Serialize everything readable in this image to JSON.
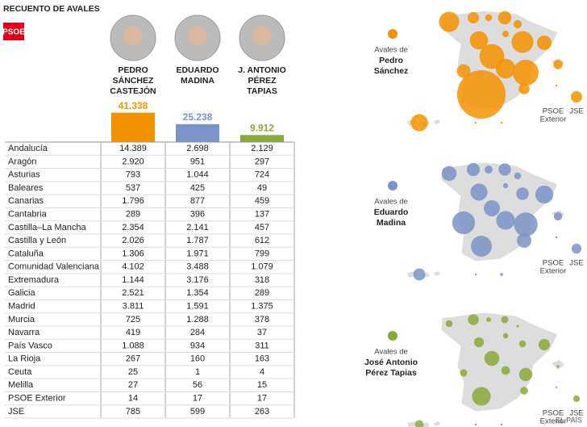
{
  "header": {
    "title": "RECUENTO DE AVALES",
    "logo": "PSOE",
    "source": "EL PAÍS"
  },
  "candidates": [
    {
      "name_lines": [
        "PEDRO",
        "SÁNCHEZ",
        "CASTEJÓN"
      ],
      "total": {
        "value": 41338,
        "label": "41.338"
      },
      "color": "#f39200"
    },
    {
      "name_lines": [
        "EDUARDO",
        "MADINA"
      ],
      "total": {
        "value": 25238,
        "label": "25.238"
      },
      "color": "#7b93c6"
    },
    {
      "name_lines": [
        "J. ANTONIO",
        "PÉREZ",
        "TAPIAS"
      ],
      "total": {
        "value": 9912,
        "label": "9.912"
      },
      "color": "#8aa83a"
    }
  ],
  "table": {
    "rows": [
      {
        "region": "Andalucía",
        "values": [
          {
            "value": 14389,
            "label": "14.389"
          },
          {
            "value": 2698,
            "label": "2.698"
          },
          {
            "value": 2129,
            "label": "2.129"
          }
        ]
      },
      {
        "region": "Aragón",
        "values": [
          {
            "value": 2920,
            "label": "2.920"
          },
          951,
          297
        ]
      },
      {
        "region": "Asturias",
        "values": [
          793,
          {
            "value": 1044,
            "label": "1.044"
          },
          724
        ]
      },
      {
        "region": "Baleares",
        "values": [
          537,
          425,
          49
        ]
      },
      {
        "region": "Canarias",
        "values": [
          {
            "value": 1796,
            "label": "1.796"
          },
          877,
          459
        ]
      },
      {
        "region": "Cantabria",
        "values": [
          289,
          396,
          137
        ]
      },
      {
        "region": "Castilla–La Mancha",
        "values": [
          {
            "value": 2354,
            "label": "2.354"
          },
          {
            "value": 2141,
            "label": "2.141"
          },
          457
        ]
      },
      {
        "region": "Castilla y León",
        "values": [
          {
            "value": 2026,
            "label": "2.026"
          },
          {
            "value": 1787,
            "label": "1.787"
          },
          612
        ]
      },
      {
        "region": "Cataluña",
        "values": [
          {
            "value": 1306,
            "label": "1.306"
          },
          {
            "value": 1971,
            "label": "1.971"
          },
          799
        ]
      },
      {
        "region": "Comunidad Valenciana",
        "values": [
          {
            "value": 4102,
            "label": "4.102"
          },
          {
            "value": 3488,
            "label": "3.488"
          },
          {
            "value": 1079,
            "label": "1.079"
          }
        ]
      },
      {
        "region": "Extremadura",
        "values": [
          {
            "value": 1144,
            "label": "1.144"
          },
          {
            "value": 3176,
            "label": "3.176"
          },
          318
        ]
      },
      {
        "region": "Galicia",
        "values": [
          {
            "value": 2521,
            "label": "2.521"
          },
          {
            "value": 1354,
            "label": "1.354"
          },
          289
        ]
      },
      {
        "region": "Madrid",
        "values": [
          {
            "value": 3811,
            "label": "3.811"
          },
          {
            "value": 1591,
            "label": "1.591"
          },
          {
            "value": 1375,
            "label": "1.375"
          }
        ]
      },
      {
        "region": "Murcia",
        "values": [
          725,
          {
            "value": 1288,
            "label": "1.288"
          },
          378
        ]
      },
      {
        "region": "Navarra",
        "values": [
          419,
          284,
          37
        ]
      },
      {
        "region": "País Vasco",
        "values": [
          {
            "value": 1088,
            "label": "1.088"
          },
          934,
          311
        ]
      },
      {
        "region": "La Rioja",
        "values": [
          267,
          160,
          163
        ]
      },
      {
        "region": "Ceuta",
        "values": [
          25,
          1,
          4
        ]
      },
      {
        "region": "Melilla",
        "values": [
          27,
          56,
          15
        ]
      },
      {
        "region": "PSOE Exterior",
        "values": [
          14,
          17,
          17
        ]
      },
      {
        "region": "JSE",
        "values": [
          785,
          599,
          263
        ]
      }
    ]
  },
  "maps": [
    {
      "title_lines": [
        "Avales de",
        "Pedro",
        "Sánchez"
      ],
      "exterior_label": [
        "PSOE",
        "Exterior"
      ],
      "jse_label": "JSE"
    },
    {
      "title_lines": [
        "Avales de",
        "Eduardo",
        "Madina"
      ],
      "exterior_label": [
        "PSOE",
        "Exterior"
      ],
      "jse_label": "JSE"
    },
    {
      "title_lines": [
        "Avales de",
        "José Antonio",
        "Pérez Tapias"
      ],
      "exterior_label": [
        "PSOE",
        "Exterior"
      ],
      "jse_label": "JSE"
    }
  ]
}
